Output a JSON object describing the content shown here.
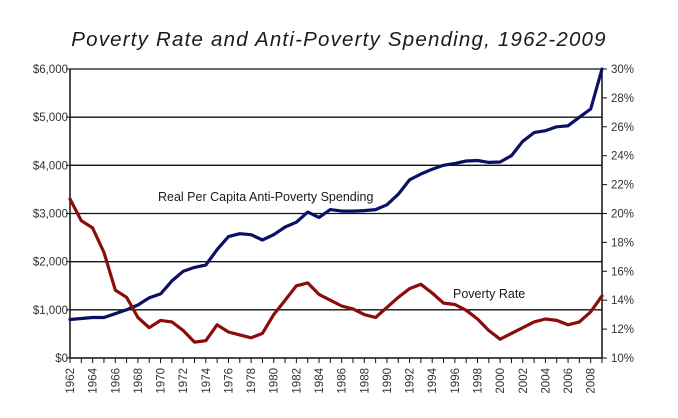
{
  "chart_data": {
    "type": "line",
    "title": "Poverty Rate and Anti-Poverty Spending, 1962-2009",
    "xlabel": "",
    "ylabel_left": "",
    "ylabel_right": "",
    "x": [
      1962,
      1963,
      1964,
      1965,
      1966,
      1967,
      1968,
      1969,
      1970,
      1971,
      1972,
      1973,
      1974,
      1975,
      1976,
      1977,
      1978,
      1979,
      1980,
      1981,
      1982,
      1983,
      1984,
      1985,
      1986,
      1987,
      1988,
      1989,
      1990,
      1991,
      1992,
      1993,
      1994,
      1995,
      1996,
      1997,
      1998,
      1999,
      2000,
      2001,
      2002,
      2003,
      2004,
      2005,
      2006,
      2007,
      2008,
      2009
    ],
    "xlim": [
      1962,
      2009
    ],
    "x_tick_labels": [
      "1962",
      "1964",
      "1966",
      "1968",
      "1970",
      "1972",
      "1974",
      "1976",
      "1978",
      "1980",
      "1982",
      "1984",
      "1986",
      "1988",
      "1990",
      "1992",
      "1994",
      "1996",
      "1998",
      "2000",
      "2002",
      "2004",
      "2006",
      "2008"
    ],
    "y_left": {
      "lim": [
        0,
        6000
      ],
      "tick_values": [
        0,
        1000,
        2000,
        3000,
        4000,
        5000,
        6000
      ],
      "tick_labels": [
        "$0",
        "$1,000",
        "$2,000",
        "$3,000",
        "$4,000",
        "$5,000",
        "$6,000"
      ]
    },
    "y_right": {
      "lim": [
        10,
        30
      ],
      "tick_values": [
        10,
        12,
        14,
        16,
        18,
        20,
        22,
        24,
        26,
        28,
        30
      ],
      "tick_labels": [
        "10%",
        "12%",
        "14%",
        "16%",
        "18%",
        "20%",
        "22%",
        "24%",
        "26%",
        "28%",
        "30%"
      ]
    },
    "grid": "horizontal at left-axis major ticks",
    "legend": "none (inline annotations)",
    "series": [
      {
        "name": "Real Per Capita Anti-Poverty Spending",
        "axis": "left",
        "color": "#0b1065",
        "annotation": "Real Per Capita Anti-Poverty Spending",
        "values": [
          800,
          820,
          840,
          840,
          920,
          1000,
          1100,
          1250,
          1330,
          1600,
          1800,
          1880,
          1930,
          2250,
          2520,
          2580,
          2560,
          2450,
          2560,
          2720,
          2820,
          3030,
          2920,
          3080,
          3050,
          3050,
          3060,
          3080,
          3180,
          3400,
          3700,
          3820,
          3920,
          4000,
          4040,
          4090,
          4100,
          4060,
          4070,
          4200,
          4500,
          4680,
          4720,
          4800,
          4820,
          5000,
          5170,
          6000
        ]
      },
      {
        "name": "Poverty Rate",
        "axis": "right",
        "color": "#8b0c0c",
        "annotation": "Poverty Rate",
        "values": [
          21.0,
          19.5,
          19.0,
          17.3,
          14.7,
          14.2,
          12.8,
          12.1,
          12.6,
          12.5,
          11.9,
          11.1,
          11.2,
          12.3,
          11.8,
          11.6,
          11.4,
          11.7,
          13.0,
          14.0,
          15.0,
          15.2,
          14.4,
          14.0,
          13.6,
          13.4,
          13.0,
          12.8,
          13.5,
          14.2,
          14.8,
          15.1,
          14.5,
          13.8,
          13.7,
          13.3,
          12.7,
          11.9,
          11.3,
          11.7,
          12.1,
          12.5,
          12.7,
          12.6,
          12.3,
          12.5,
          13.2,
          14.3
        ]
      }
    ]
  }
}
